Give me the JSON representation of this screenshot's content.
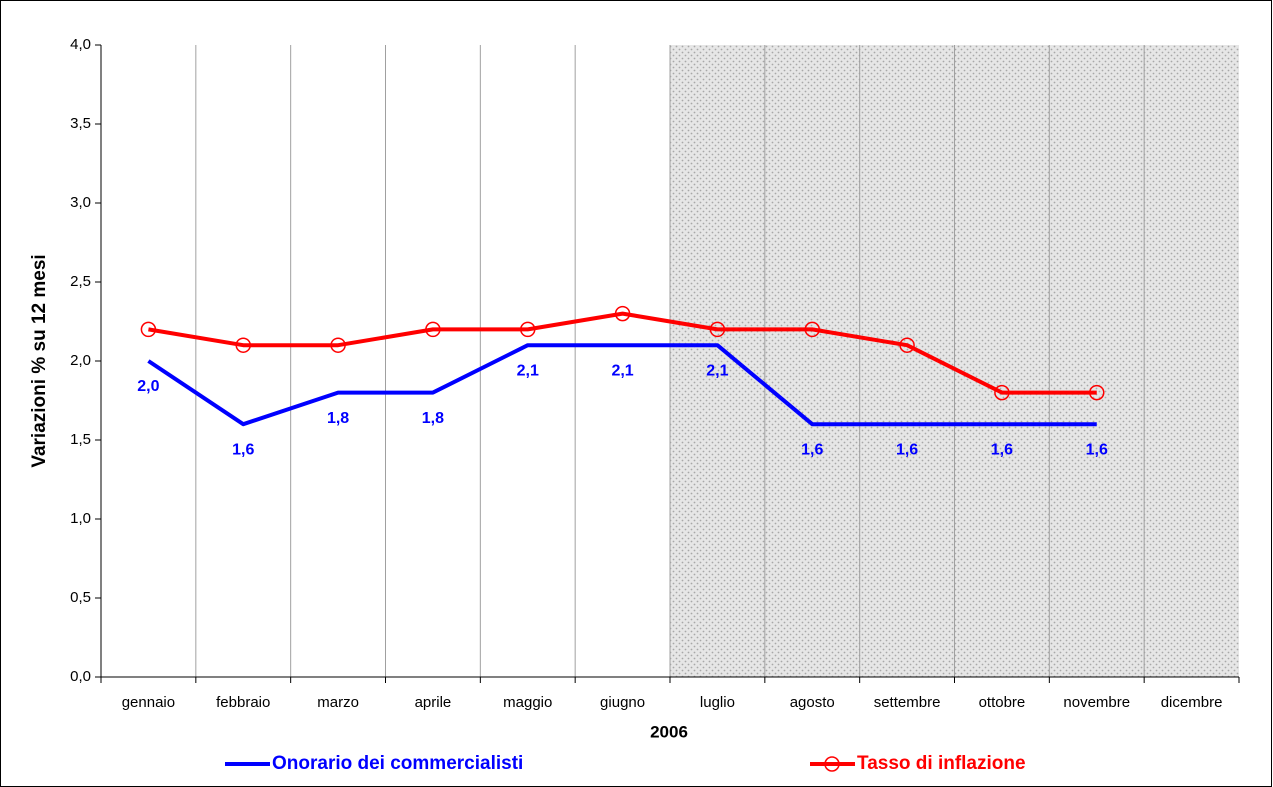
{
  "chart_data": {
    "type": "line",
    "x_label": "2006",
    "y_label": "Variazioni % su 12 mesi",
    "categories": [
      "gennaio",
      "febbraio",
      "marzo",
      "aprile",
      "maggio",
      "giugno",
      "luglio",
      "agosto",
      "settembre",
      "ottobre",
      "novembre",
      "dicembre"
    ],
    "series": [
      {
        "name": "Onorario dei commercialisti",
        "color": "#0000ff",
        "marker": "none",
        "values": [
          2.0,
          1.6,
          1.8,
          1.8,
          2.1,
          2.1,
          2.1,
          1.6,
          1.6,
          1.6,
          1.6,
          null
        ],
        "value_labels": [
          "2,0",
          "1,6",
          "1,8",
          "1,8",
          "2,1",
          "2,1",
          "2,1",
          "1,6",
          "1,6",
          "1,6",
          "1,6",
          null
        ]
      },
      {
        "name": "Tasso di inflazione",
        "color": "#ff0000",
        "marker": "circle",
        "values": [
          2.2,
          2.1,
          2.1,
          2.2,
          2.2,
          2.3,
          2.2,
          2.2,
          2.1,
          1.8,
          1.8,
          null
        ]
      }
    ],
    "ylim": [
      0,
      4
    ],
    "yticks": [
      {
        "value": 0,
        "label": "0,0"
      },
      {
        "value": 0.5,
        "label": "0,5"
      },
      {
        "value": 1,
        "label": "1,0"
      },
      {
        "value": 1.5,
        "label": "1,5"
      },
      {
        "value": 2,
        "label": "2,0"
      },
      {
        "value": 2.5,
        "label": "2,5"
      },
      {
        "value": 3,
        "label": "3,0"
      },
      {
        "value": 3.5,
        "label": "3,5"
      },
      {
        "value": 4,
        "label": "4,0"
      }
    ],
    "grid": "x",
    "shade_from": "luglio",
    "legend": "bottom"
  }
}
